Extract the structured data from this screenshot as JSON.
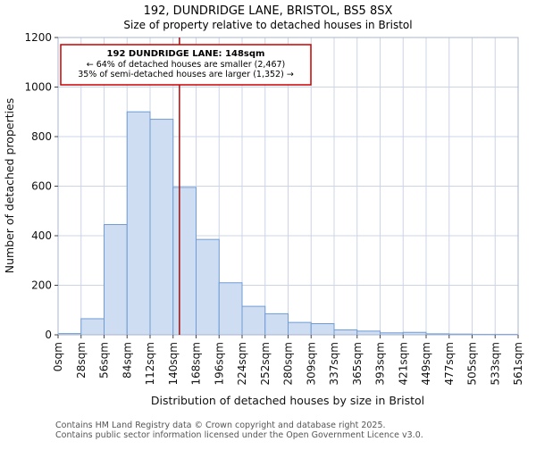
{
  "chart_data": {
    "type": "bar",
    "title": "192, DUNDRIDGE LANE, BRISTOL, BS5 8SX",
    "subtitle": "Size of property relative to detached houses in Bristol",
    "xlabel": "Distribution of detached houses by size in Bristol",
    "ylabel": "Number of detached properties",
    "ylim": [
      0,
      1200
    ],
    "yticks": [
      0,
      200,
      400,
      600,
      800,
      1000,
      1200
    ],
    "categories": [
      "0sqm",
      "28sqm",
      "56sqm",
      "84sqm",
      "112sqm",
      "140sqm",
      "168sqm",
      "196sqm",
      "224sqm",
      "252sqm",
      "280sqm",
      "309sqm",
      "337sqm",
      "365sqm",
      "393sqm",
      "421sqm",
      "449sqm",
      "477sqm",
      "505sqm",
      "533sqm",
      "561sqm"
    ],
    "values": [
      5,
      65,
      445,
      900,
      870,
      595,
      385,
      210,
      115,
      85,
      50,
      45,
      20,
      15,
      8,
      10,
      4,
      3,
      2,
      2
    ],
    "grid": true,
    "legend": false,
    "marker": {
      "value_sqm": 148,
      "axis_max_sqm": 561
    },
    "annotation": {
      "line1": "192 DUNDRIDGE LANE: 148sqm",
      "line2": "← 64% of detached houses are smaller (2,467)",
      "line3": "35% of semi-detached houses are larger (1,352) →"
    },
    "colors": {
      "bar_fill": "#cfddf2",
      "bar_border": "#6f9cd4",
      "marker_line": "#991111",
      "annotation_border": "#cc0000",
      "grid": "#ccd4e6",
      "frame": "#a9b4cd",
      "tick": "#444444"
    }
  },
  "footer": {
    "line1": "Contains HM Land Registry data © Crown copyright and database right 2025.",
    "line2": "Contains public sector information licensed under the Open Government Licence v3.0."
  }
}
